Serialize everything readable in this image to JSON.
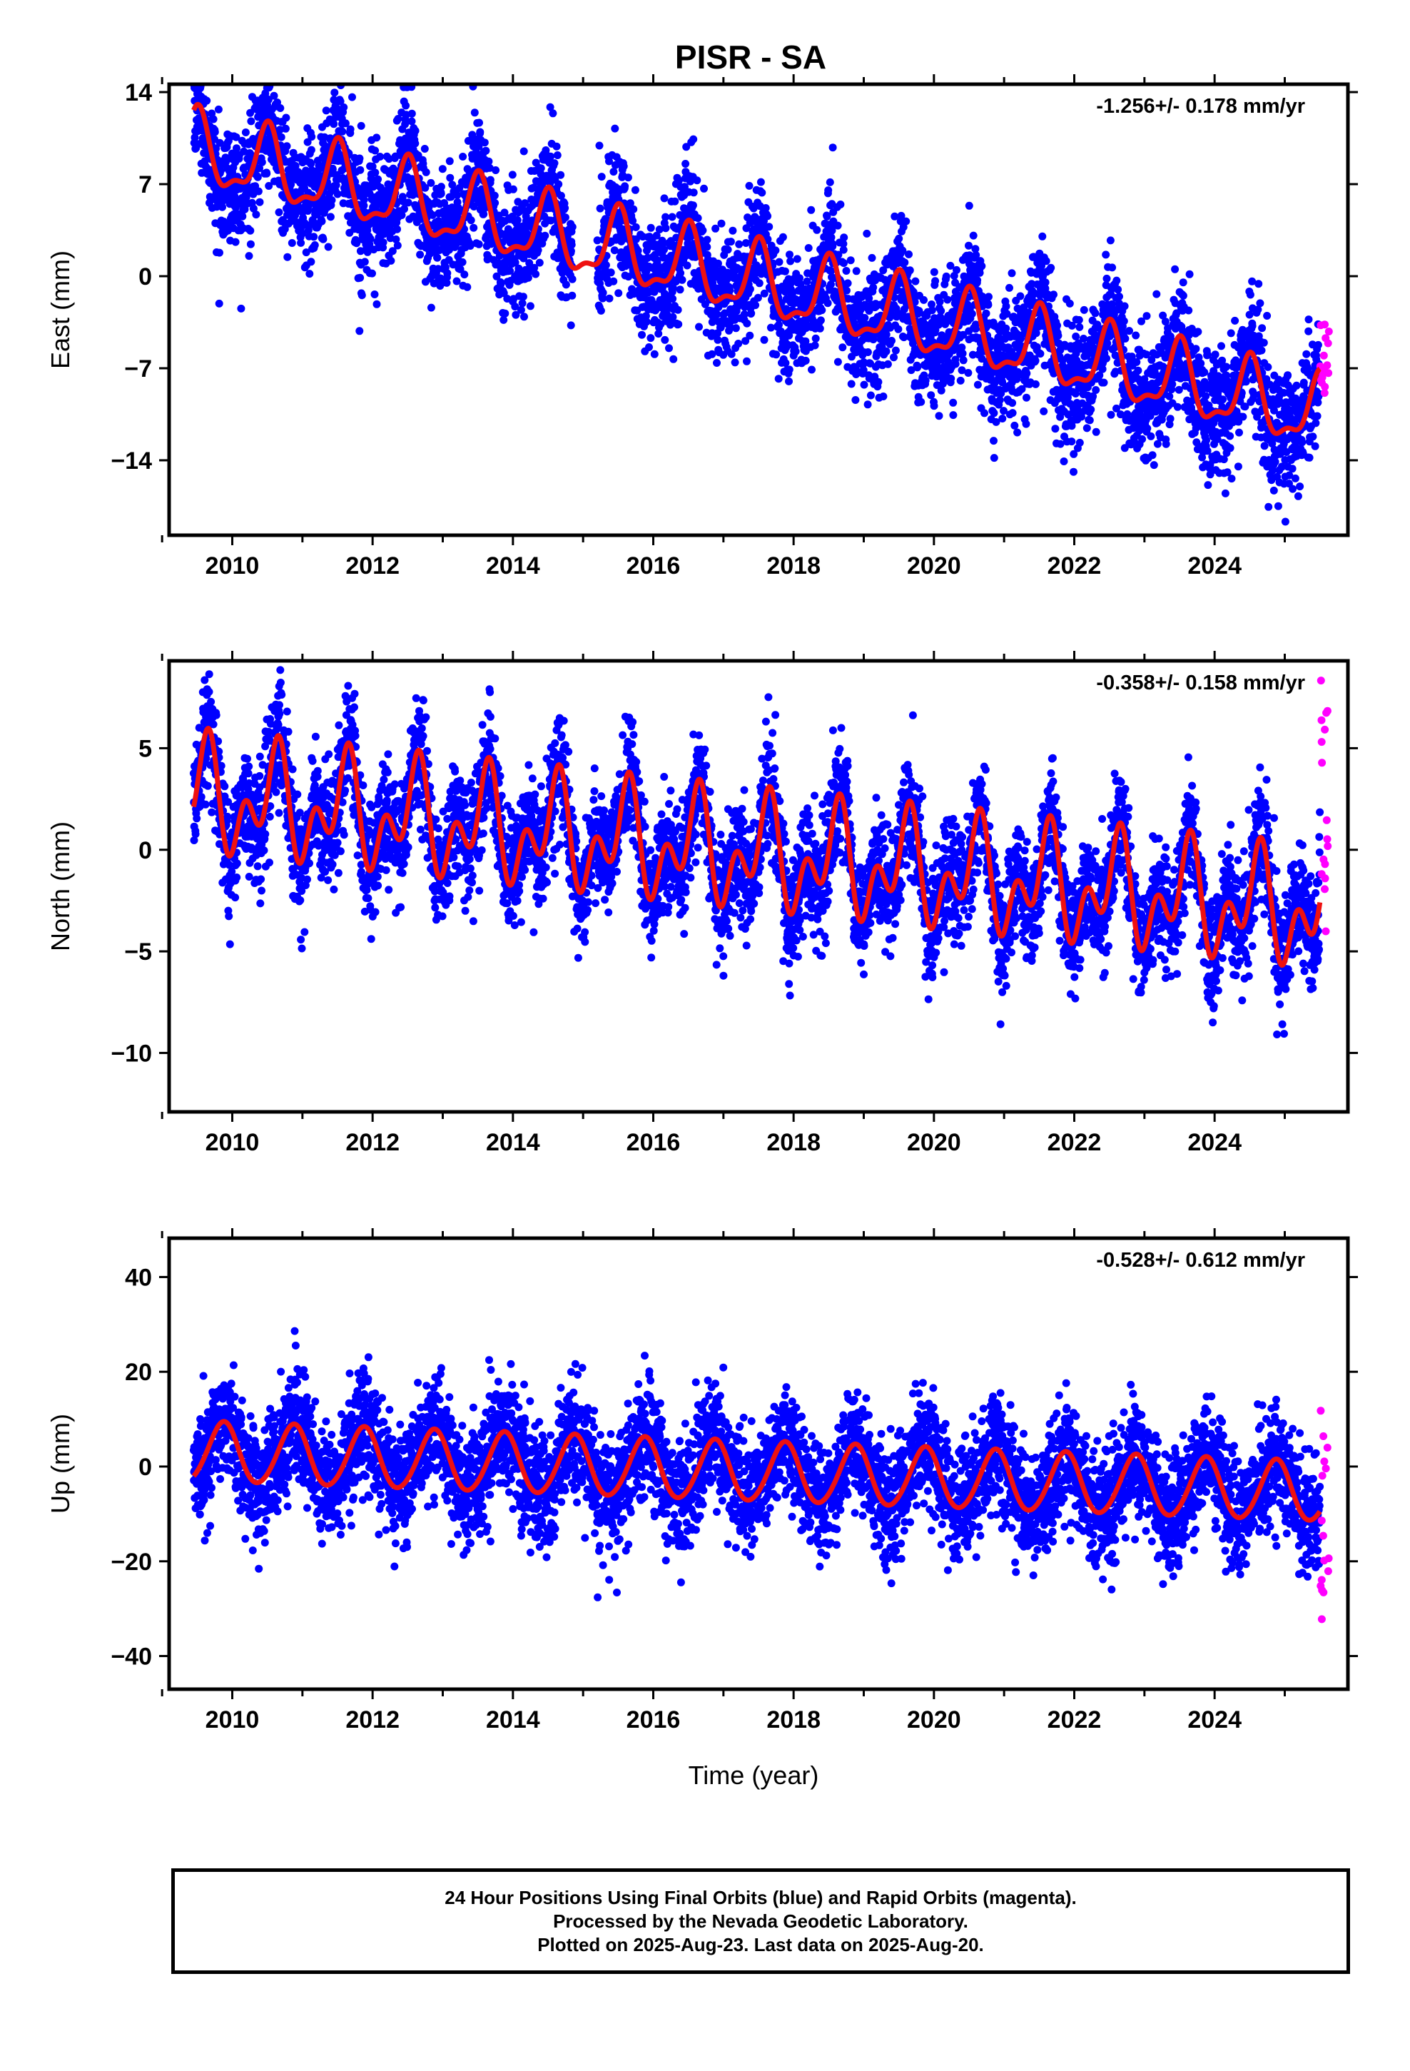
{
  "figure": {
    "title": "PISR - SA",
    "xlabel": "Time (year)",
    "footer": [
      "24 Hour Positions Using Final Orbits (blue) and Rapid Orbits (magenta).",
      "Processed by the Nevada Geodetic Laboratory.",
      "Plotted on 2025-Aug-23. Last data on 2025-Aug-20."
    ]
  },
  "colors": {
    "final_orbits": "#0000ff",
    "rapid_orbits": "#ff00ff",
    "model_fit": "#ee1111",
    "frame": "#000000"
  },
  "chart_data": [
    {
      "type": "scatter",
      "component": "East",
      "ylabel": "East (mm)",
      "rate": "-1.256+/- 0.178 mm/yr",
      "xlim": [
        2009.1,
        2025.9
      ],
      "ylim": [
        -19.7,
        14.6
      ],
      "yticks": [
        14,
        7,
        0,
        -7,
        -14
      ],
      "yticklabels": [
        "14",
        "7",
        "0",
        "−7",
        "−14"
      ],
      "xticks": [
        2010,
        2012,
        2014,
        2016,
        2018,
        2020,
        2022,
        2024
      ],
      "xticklabels": [
        "2010",
        "2012",
        "2014",
        "2016",
        "2018",
        "2020",
        "2022",
        "2024"
      ],
      "data_span": [
        2009.45,
        2025.5
      ],
      "series": [
        {
          "kind": "daily positions (final orbits)",
          "model": {
            "intercept": 9.5,
            "slope": -1.256,
            "a1": 2.6,
            "p1": 0.25,
            "a2": 1.0,
            "p2": 0.4
          },
          "scatter": 2.3
        },
        {
          "kind": "rapid orbits",
          "x_range": [
            2025.5,
            2025.63
          ],
          "y_range": [
            -9.0,
            -3.5
          ]
        },
        {
          "kind": "model fit",
          "model": {
            "intercept": 9.5,
            "slope": -1.256,
            "a1": 2.6,
            "p1": 0.25,
            "a2": 1.0,
            "p2": 0.4
          }
        }
      ]
    },
    {
      "type": "scatter",
      "component": "North",
      "ylabel": "North (mm)",
      "rate": "-0.358+/- 0.158 mm/yr",
      "xlim": [
        2009.1,
        2025.9
      ],
      "ylim": [
        -12.9,
        9.3
      ],
      "yticks": [
        5,
        0,
        -5,
        -10
      ],
      "yticklabels": [
        "5",
        "0",
        "−5",
        "−10"
      ],
      "xticks": [
        2010,
        2012,
        2014,
        2016,
        2018,
        2020,
        2022,
        2024
      ],
      "xticklabels": [
        "2010",
        "2012",
        "2014",
        "2016",
        "2018",
        "2020",
        "2022",
        "2024"
      ],
      "data_span": [
        2009.45,
        2025.5
      ],
      "series": [
        {
          "kind": "daily positions (final orbits)",
          "model": {
            "intercept": 2.6,
            "slope": -0.358,
            "a1": 1.9,
            "p1": 0.35,
            "a2": 1.7,
            "p2": 0.55
          },
          "scatter": 1.4
        },
        {
          "kind": "rapid orbits",
          "x_range": [
            2025.5,
            2025.63
          ],
          "y_range": [
            -4.5,
            9.0
          ]
        },
        {
          "kind": "model fit",
          "model": {
            "intercept": 2.6,
            "slope": -0.358,
            "a1": 1.9,
            "p1": 0.35,
            "a2": 1.7,
            "p2": 0.55
          }
        }
      ]
    },
    {
      "type": "scatter",
      "component": "Up",
      "ylabel": "Up (mm)",
      "rate": "-0.528+/- 0.612 mm/yr",
      "xlim": [
        2009.1,
        2025.9
      ],
      "ylim": [
        -47.0,
        48.2
      ],
      "yticks": [
        40,
        20,
        0,
        -20,
        -40
      ],
      "yticklabels": [
        "40",
        "20",
        "0",
        "−20",
        "−40"
      ],
      "xticks": [
        2010,
        2012,
        2014,
        2016,
        2018,
        2020,
        2022,
        2024
      ],
      "xticklabels": [
        "2010",
        "2012",
        "2014",
        "2016",
        "2018",
        "2020",
        "2022",
        "2024"
      ],
      "data_span": [
        2009.45,
        2025.5
      ],
      "series": [
        {
          "kind": "daily positions (final orbits)",
          "model": {
            "intercept": 3.0,
            "slope": -0.528,
            "a1": 6.3,
            "p1": 0.62,
            "a2": 0.5,
            "p2": 0.3
          },
          "scatter": 6.0
        },
        {
          "kind": "rapid orbits",
          "x_range": [
            2025.5,
            2025.63
          ],
          "y_range": [
            -35.0,
            13.0
          ]
        },
        {
          "kind": "model fit",
          "model": {
            "intercept": 3.0,
            "slope": -0.528,
            "a1": 6.3,
            "p1": 0.62,
            "a2": 0.5,
            "p2": 0.3
          }
        }
      ]
    }
  ]
}
